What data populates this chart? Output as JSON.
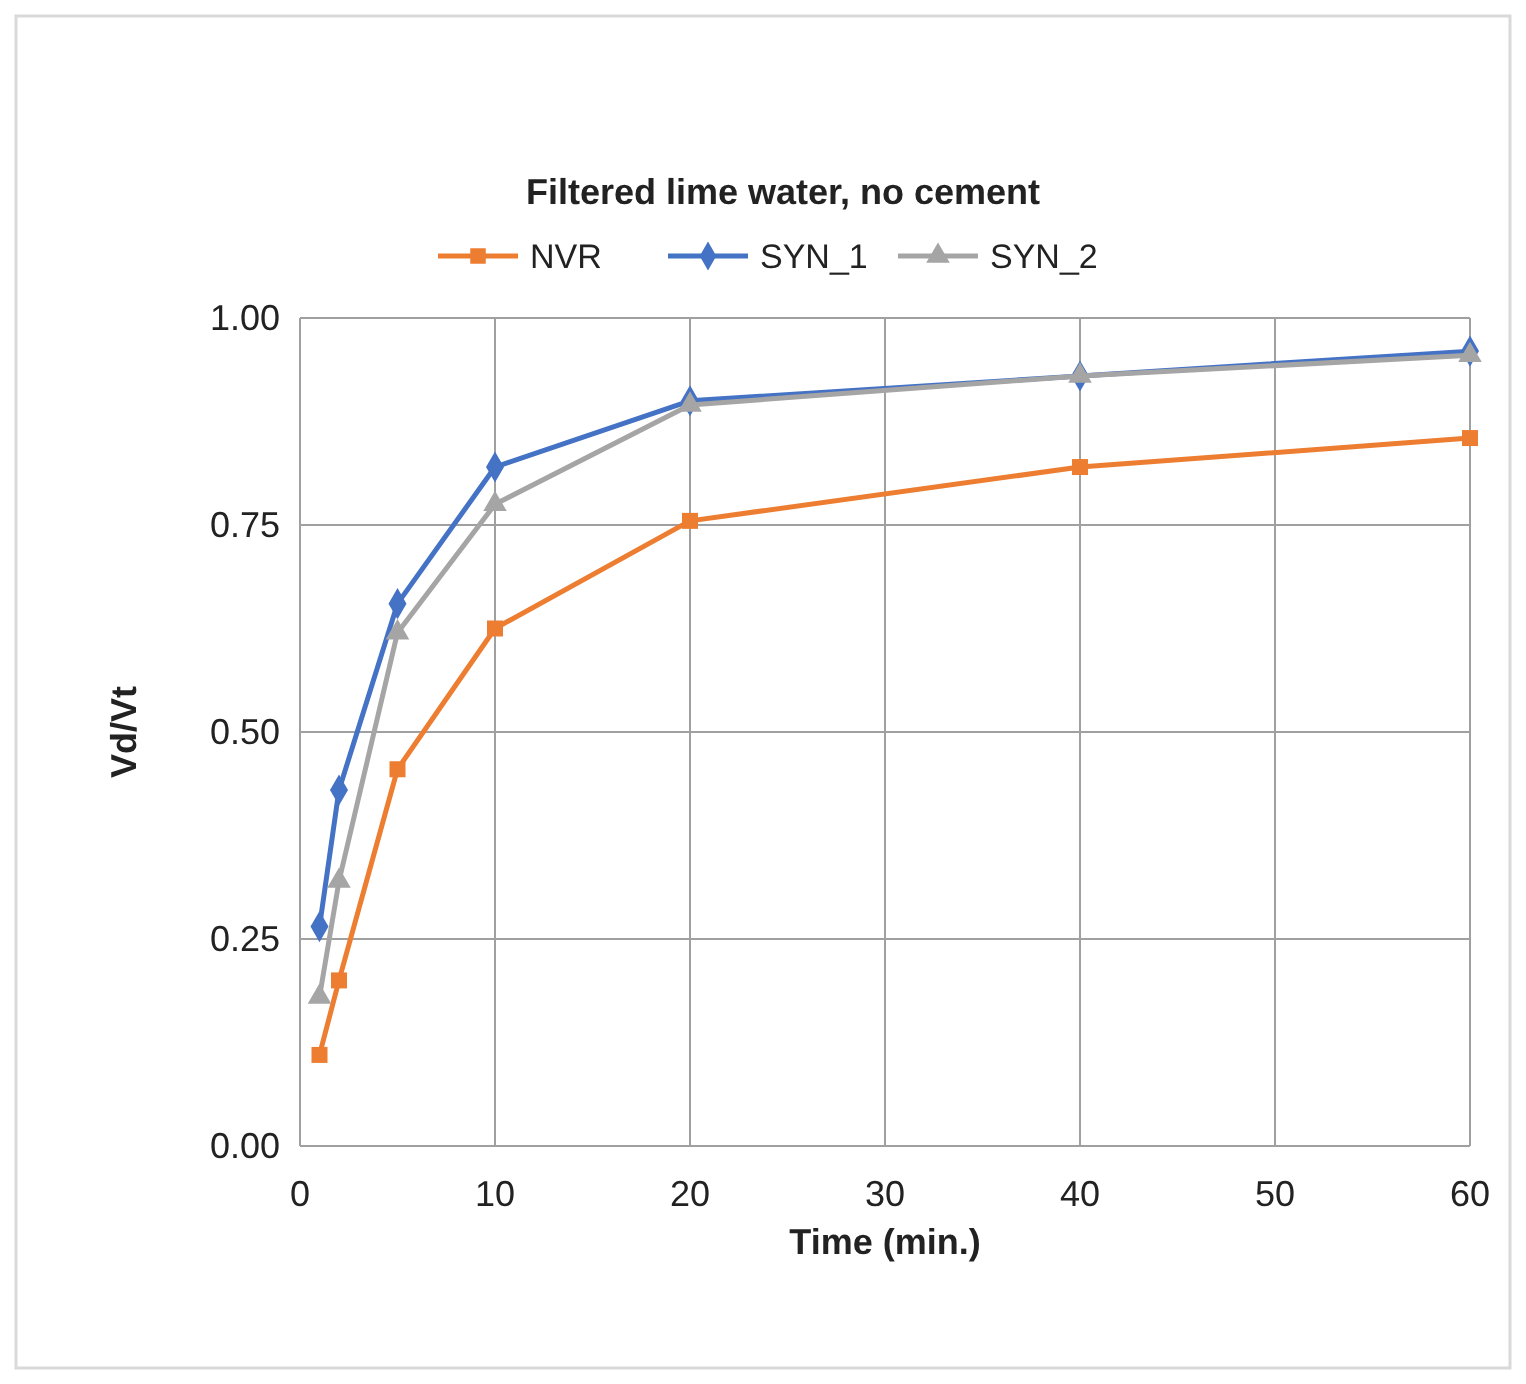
{
  "chart_data": {
    "type": "line",
    "title": "Filtered lime water, no cement",
    "xlabel": "Time (min.)",
    "ylabel": "Vd/Vt",
    "x": [
      1,
      2,
      5,
      10,
      20,
      40,
      60
    ],
    "series": [
      {
        "name": "NVR",
        "color": "#ed7d31",
        "marker": "square",
        "values": [
          0.11,
          0.2,
          0.455,
          0.625,
          0.755,
          0.82,
          0.855
        ]
      },
      {
        "name": "SYN_1",
        "color": "#4472c4",
        "marker": "diamond",
        "values": [
          0.265,
          0.43,
          0.655,
          0.82,
          0.9,
          0.93,
          0.96
        ]
      },
      {
        "name": "SYN_2",
        "color": "#a5a5a5",
        "marker": "triangle",
        "values": [
          0.18,
          0.32,
          0.62,
          0.775,
          0.895,
          0.93,
          0.955
        ]
      }
    ],
    "xlim": [
      0,
      60
    ],
    "xticks": [
      0,
      10,
      20,
      30,
      40,
      50,
      60
    ],
    "ylim": [
      0,
      1
    ],
    "yticks": [
      {
        "value": 0,
        "label": "0.00"
      },
      {
        "value": 0.25,
        "label": "0.25"
      },
      {
        "value": 0.5,
        "label": "0.50"
      },
      {
        "value": 0.75,
        "label": "0.75"
      },
      {
        "value": 1,
        "label": "1.00"
      }
    ],
    "grid": true,
    "legend": "top",
    "line_style": "solid"
  }
}
